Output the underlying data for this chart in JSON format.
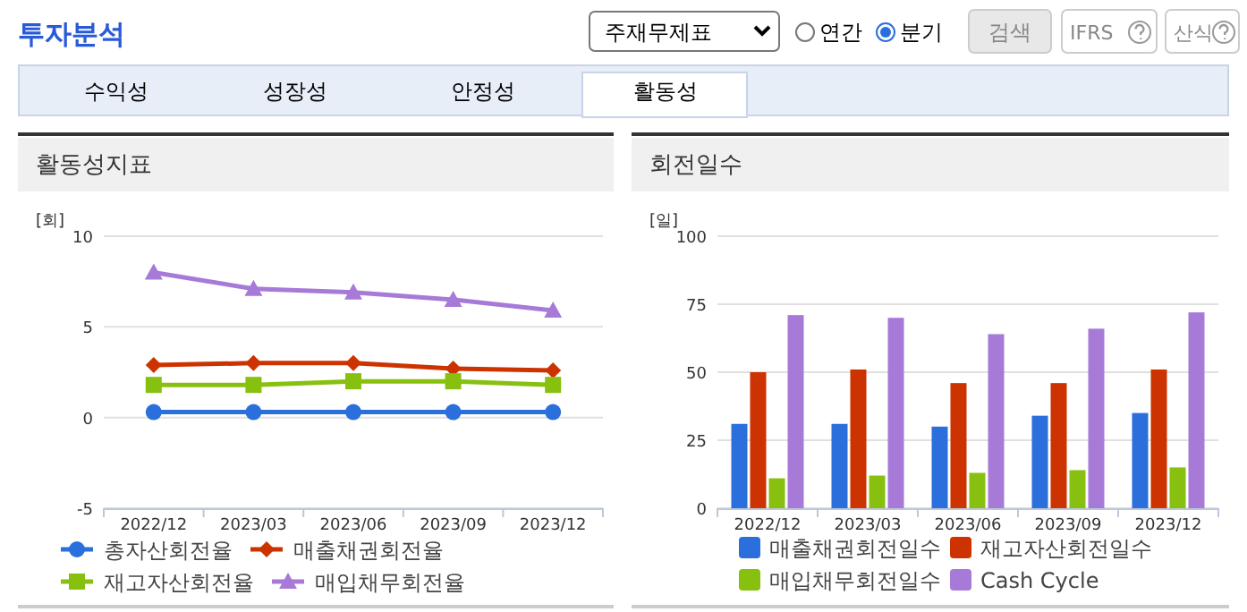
{
  "chart_data": [
    {
      "type": "other",
      "title": "투자분석",
      "annotations": [
        "주재무제표",
        "연간",
        "분기",
        "검색",
        "IFRS",
        "산식",
        "수익성",
        "성장성",
        "안정성",
        "활동성"
      ]
    },
    {
      "type": "line",
      "title": "활동성지표",
      "ylabel": "[회]",
      "categories": [
        "2022/12",
        "2023/03",
        "2023/06",
        "2023/09",
        "2023/12"
      ],
      "ylim": [
        -5,
        10
      ],
      "yticks": [
        -5,
        0,
        5,
        10
      ],
      "grid": "y",
      "legend": "bottom",
      "line_style": "solid",
      "series": [
        {
          "name": "총자산회전율",
          "color": "#2a6fdb",
          "marker": "circle",
          "values": [
            0.3,
            0.3,
            0.3,
            0.3,
            0.3
          ]
        },
        {
          "name": "매출채권회전율",
          "color": "#cc3300",
          "marker": "diamond",
          "values": [
            2.9,
            3.0,
            3.0,
            2.7,
            2.6
          ]
        },
        {
          "name": "재고자산회전율",
          "color": "#88c010",
          "marker": "square",
          "values": [
            1.8,
            1.8,
            2.0,
            2.0,
            1.8
          ]
        },
        {
          "name": "매입채무회전율",
          "color": "#a77ad8",
          "marker": "triangle",
          "values": [
            8.0,
            7.1,
            6.9,
            6.5,
            5.9
          ]
        }
      ]
    },
    {
      "type": "bar",
      "title": "회전일수",
      "ylabel": "[일]",
      "categories": [
        "2022/12",
        "2023/03",
        "2023/06",
        "2023/09",
        "2023/12"
      ],
      "ylim": [
        0,
        100
      ],
      "yticks": [
        0,
        25,
        50,
        75,
        100
      ],
      "grid": "y",
      "legend": "bottom",
      "series": [
        {
          "name": "매출채권회전일수",
          "color": "#2a6fdb",
          "values": [
            31,
            31,
            30,
            34,
            35
          ]
        },
        {
          "name": "재고자산회전일수",
          "color": "#cc3300",
          "values": [
            50,
            51,
            46,
            46,
            51
          ]
        },
        {
          "name": "매입채무회전일수",
          "color": "#88c010",
          "values": [
            11,
            12,
            13,
            14,
            15
          ]
        },
        {
          "name": "Cash Cycle",
          "color": "#a77ad8",
          "values": [
            71,
            70,
            64,
            66,
            72
          ]
        }
      ]
    }
  ]
}
